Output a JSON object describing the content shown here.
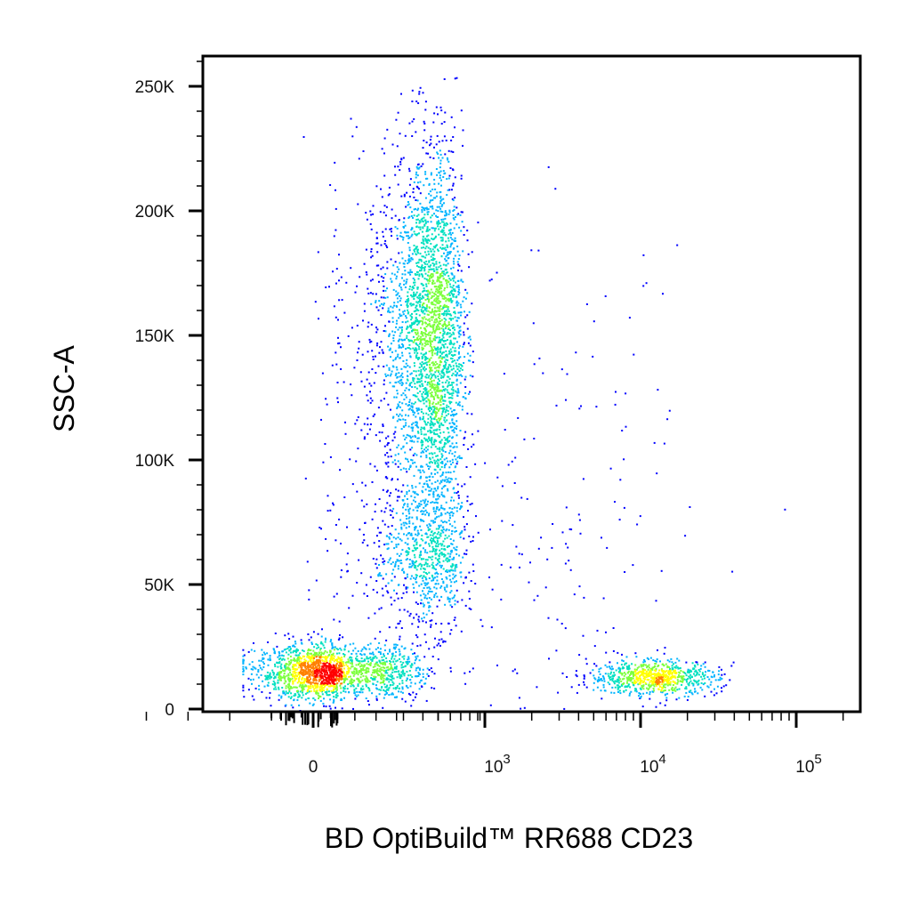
{
  "chart_data": {
    "type": "scatter",
    "xlabel": "BD OptiBuild™ RR688 CD23",
    "ylabel": "SSC-A",
    "x_scale": "biexponential",
    "y_scale": "linear",
    "xlim": [
      -300,
      250000
    ],
    "ylim": [
      -4000,
      262000
    ],
    "grid": false,
    "legend": "none",
    "density_coloring": true,
    "density_colormap": [
      "#0000ff",
      "#00b4ff",
      "#00e0c0",
      "#7cff3c",
      "#ffff00",
      "#ff8000",
      "#ff0000"
    ],
    "x_ticks": [
      {
        "value": 0,
        "label": "0"
      },
      {
        "value": 1000,
        "base": "10",
        "exp": "3"
      },
      {
        "value": 10000,
        "base": "10",
        "exp": "4"
      },
      {
        "value": 100000,
        "base": "10",
        "exp": "5"
      }
    ],
    "y_ticks": [
      {
        "value": 0,
        "label": "0"
      },
      {
        "value": 50000,
        "label": "50K"
      },
      {
        "value": 100000,
        "label": "100K"
      },
      {
        "value": 150000,
        "label": "150K"
      },
      {
        "value": 200000,
        "label": "200K"
      },
      {
        "value": 250000,
        "label": "250K"
      }
    ],
    "populations": [
      {
        "name": "",
        "x_center": 60,
        "y_center": 15000,
        "spread_x": 150,
        "spread_y": 5500,
        "relative_count": 0.28
      },
      {
        "name": "",
        "x_center": 430,
        "y_center": 150000,
        "spread_x": 140,
        "spread_y": 38000,
        "relative_count": 0.45
      },
      {
        "name": "",
        "x_center": 420,
        "y_center": 62000,
        "spread_x": 160,
        "spread_y": 15000,
        "relative_count": 0.12
      },
      {
        "name": "",
        "x_center": 12000,
        "y_center": 13000,
        "spread_x": 9000,
        "spread_y": 3500,
        "relative_count": 0.12
      },
      {
        "name": "",
        "x_center": 3000,
        "y_center": 60000,
        "spread_x": 6000,
        "spread_y": 60000,
        "relative_count": 0.03
      }
    ]
  }
}
